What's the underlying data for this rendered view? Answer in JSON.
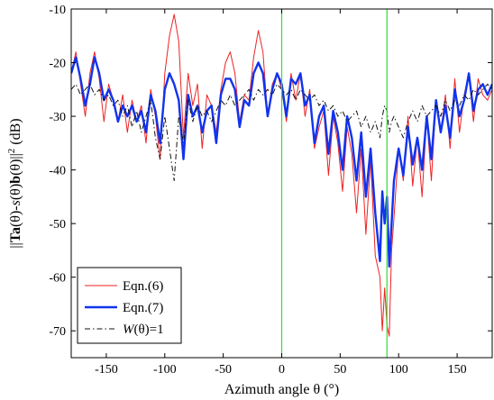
{
  "chart_data": {
    "type": "line",
    "title": "",
    "xlabel": "Azimuth angle θ (°)",
    "ylabel_parts": [
      {
        "text": "||",
        "style": "normal"
      },
      {
        "text": "Ta",
        "style": "bold"
      },
      {
        "text": "(θ)-",
        "style": "normal"
      },
      {
        "text": "s",
        "style": "italic"
      },
      {
        "text": "(θ)",
        "style": "normal"
      },
      {
        "text": "b",
        "style": "bold"
      },
      {
        "text": "(θ)||",
        "style": "normal"
      },
      {
        "text": "2",
        "style": "sup"
      },
      {
        "text": " (dB)",
        "style": "normal"
      }
    ],
    "xlim": [
      -180,
      180
    ],
    "ylim": [
      -75,
      -10
    ],
    "xticks": [
      -150,
      -100,
      -50,
      0,
      50,
      100,
      150
    ],
    "xtick_labels": [
      "-150",
      "-100",
      "-50",
      "0",
      "50",
      "100",
      "150"
    ],
    "yticks": [
      -70,
      -60,
      -50,
      -40,
      -30,
      -20,
      -10
    ],
    "ytick_labels": [
      "-70",
      "-60",
      "-50",
      "-40",
      "-30",
      "-20",
      "-10"
    ],
    "grid": false,
    "legend_position": "bottom-left",
    "vlines": [
      {
        "x": 0,
        "color": "#33dd33"
      },
      {
        "x": 90,
        "color": "#33dd33"
      }
    ],
    "series": [
      {
        "name": "Eqn.(6)",
        "label_parts": [
          {
            "text": "Eqn.(6)",
            "style": "normal"
          }
        ],
        "color": "#ee2222",
        "stroke": "thin",
        "dash": "solid",
        "x": [
          -180,
          -176,
          -172,
          -168,
          -164,
          -160,
          -156,
          -152,
          -148,
          -144,
          -140,
          -136,
          -132,
          -128,
          -124,
          -120,
          -116,
          -112,
          -108,
          -104,
          -100,
          -96,
          -92,
          -88,
          -84,
          -80,
          -76,
          -72,
          -68,
          -64,
          -60,
          -56,
          -52,
          -48,
          -44,
          -40,
          -36,
          -32,
          -28,
          -24,
          -20,
          -16,
          -12,
          -8,
          -4,
          0,
          4,
          8,
          12,
          16,
          20,
          24,
          28,
          32,
          36,
          40,
          44,
          48,
          52,
          56,
          60,
          64,
          68,
          72,
          76,
          80,
          84,
          86,
          88,
          90,
          92,
          94,
          96,
          100,
          104,
          108,
          112,
          116,
          120,
          124,
          128,
          132,
          136,
          140,
          144,
          148,
          152,
          156,
          160,
          164,
          168,
          172,
          176,
          180
        ],
        "y": [
          -22,
          -18,
          -24,
          -30,
          -22,
          -18,
          -23,
          -31,
          -24,
          -27,
          -31,
          -26,
          -33,
          -27,
          -31,
          -28,
          -35,
          -25,
          -30,
          -38,
          -22,
          -15,
          -11,
          -16,
          -34,
          -22,
          -28,
          -24,
          -36,
          -26,
          -28,
          -33,
          -25,
          -20,
          -18,
          -22,
          -31,
          -26,
          -27,
          -19,
          -14,
          -18,
          -30,
          -24,
          -22,
          -25,
          -31,
          -22,
          -27,
          -22,
          -30,
          -25,
          -36,
          -32,
          -29,
          -41,
          -30,
          -35,
          -44,
          -32,
          -37,
          -48,
          -36,
          -52,
          -38,
          -56,
          -60,
          -70,
          -62,
          -69,
          -71,
          -55,
          -49,
          -36,
          -42,
          -30,
          -43,
          -34,
          -45,
          -30,
          -42,
          -27,
          -33,
          -26,
          -36,
          -23,
          -33,
          -26,
          -22,
          -31,
          -23,
          -26,
          -27,
          -25
        ]
      },
      {
        "name": "Eqn.(7)",
        "label_parts": [
          {
            "text": "Eqn.(7)",
            "style": "normal"
          }
        ],
        "color": "#1133ee",
        "stroke": "thick",
        "dash": "solid",
        "x": [
          -180,
          -176,
          -172,
          -168,
          -164,
          -160,
          -156,
          -152,
          -148,
          -144,
          -140,
          -136,
          -132,
          -128,
          -124,
          -120,
          -116,
          -112,
          -108,
          -104,
          -100,
          -96,
          -92,
          -88,
          -84,
          -80,
          -76,
          -72,
          -68,
          -64,
          -60,
          -56,
          -52,
          -48,
          -44,
          -40,
          -36,
          -32,
          -28,
          -24,
          -20,
          -16,
          -12,
          -8,
          -4,
          0,
          4,
          8,
          12,
          16,
          20,
          24,
          28,
          32,
          36,
          40,
          44,
          48,
          52,
          56,
          60,
          64,
          68,
          72,
          76,
          80,
          84,
          86,
          88,
          90,
          92,
          94,
          96,
          100,
          104,
          108,
          112,
          116,
          120,
          124,
          128,
          132,
          136,
          140,
          144,
          148,
          152,
          156,
          160,
          164,
          168,
          172,
          176,
          180
        ],
        "y": [
          -22,
          -19,
          -23,
          -28,
          -24,
          -19,
          -22,
          -27,
          -25,
          -27,
          -31,
          -28,
          -30,
          -28,
          -31,
          -29,
          -33,
          -26,
          -29,
          -35,
          -25,
          -22,
          -24,
          -27,
          -38,
          -26,
          -30,
          -28,
          -33,
          -29,
          -28,
          -35,
          -26,
          -23,
          -23,
          -25,
          -32,
          -27,
          -28,
          -22,
          -20,
          -22,
          -30,
          -25,
          -22,
          -24,
          -30,
          -23,
          -24,
          -22,
          -28,
          -26,
          -35,
          -30,
          -28,
          -37,
          -29,
          -33,
          -40,
          -30,
          -34,
          -42,
          -33,
          -45,
          -36,
          -48,
          -57,
          -44,
          -50,
          -45,
          -58,
          -50,
          -42,
          -36,
          -41,
          -32,
          -39,
          -34,
          -40,
          -30,
          -38,
          -27,
          -33,
          -28,
          -34,
          -25,
          -30,
          -27,
          -22,
          -29,
          -25,
          -24,
          -26,
          -24
        ]
      },
      {
        "name": "W(θ)=1",
        "label_parts": [
          {
            "text": "W",
            "style": "italic"
          },
          {
            "text": "(θ)=1",
            "style": "normal"
          }
        ],
        "color": "#111111",
        "stroke": "thin",
        "dash": "dashdot",
        "x": [
          -180,
          -176,
          -172,
          -168,
          -164,
          -160,
          -156,
          -152,
          -148,
          -144,
          -140,
          -136,
          -132,
          -128,
          -124,
          -120,
          -116,
          -112,
          -108,
          -104,
          -100,
          -96,
          -92,
          -88,
          -84,
          -80,
          -76,
          -72,
          -68,
          -64,
          -60,
          -56,
          -52,
          -48,
          -44,
          -40,
          -36,
          -32,
          -28,
          -24,
          -20,
          -16,
          -12,
          -8,
          -4,
          0,
          4,
          8,
          12,
          16,
          20,
          24,
          28,
          32,
          36,
          40,
          44,
          48,
          52,
          56,
          60,
          64,
          68,
          72,
          76,
          80,
          84,
          86,
          88,
          90,
          92,
          94,
          96,
          100,
          104,
          108,
          112,
          116,
          120,
          124,
          128,
          132,
          136,
          140,
          144,
          148,
          152,
          156,
          160,
          164,
          168,
          172,
          176,
          180
        ],
        "y": [
          -25,
          -24,
          -26,
          -25,
          -24,
          -26,
          -25,
          -27,
          -26,
          -28,
          -27,
          -30,
          -28,
          -32,
          -29,
          -33,
          -30,
          -27,
          -34,
          -38,
          -30,
          -36,
          -42,
          -30,
          -35,
          -27,
          -31,
          -28,
          -30,
          -29,
          -31,
          -29,
          -27,
          -28,
          -26,
          -28,
          -27,
          -26,
          -25,
          -27,
          -25,
          -26,
          -25,
          -26,
          -24,
          -25,
          -26,
          -25,
          -27,
          -25,
          -26,
          -27,
          -26,
          -28,
          -27,
          -29,
          -28,
          -30,
          -29,
          -31,
          -30,
          -29,
          -32,
          -30,
          -33,
          -31,
          -34,
          -30,
          -28,
          -29,
          -33,
          -31,
          -30,
          -32,
          -34,
          -31,
          -29,
          -31,
          -28,
          -30,
          -29,
          -28,
          -30,
          -27,
          -29,
          -27,
          -28,
          -26,
          -27,
          -25,
          -26,
          -25,
          -24,
          -25
        ]
      }
    ]
  }
}
